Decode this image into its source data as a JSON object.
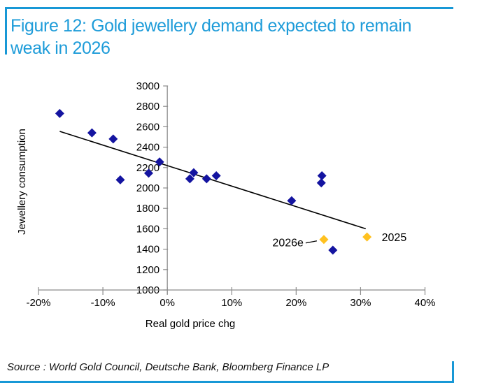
{
  "accent_color": "#1898D6",
  "header": {
    "title_line1": "Figure 12: Gold jewellery demand expected to remain",
    "title_line2": "weak in 2026",
    "title_color": "#1E9CD9"
  },
  "footer": {
    "source_text": "Source : World Gold Council, Deutsche Bank, Bloomberg Finance LP"
  },
  "chart_data": {
    "type": "scatter",
    "title": "",
    "xlabel": "Real gold price chg",
    "ylabel": "Jewellery consumption",
    "xlim": [
      -20,
      40
    ],
    "ylim": [
      1000,
      3000
    ],
    "grid": false,
    "axis_color": "#8C8C8C",
    "text_color": "#000000",
    "y_axis_cross_x": 0,
    "x_ticks": [
      {
        "v": -20,
        "label": "-20%"
      },
      {
        "v": -10,
        "label": "-10%"
      },
      {
        "v": 0,
        "label": "0%"
      },
      {
        "v": 10,
        "label": "10%"
      },
      {
        "v": 20,
        "label": "20%"
      },
      {
        "v": 30,
        "label": "30%"
      },
      {
        "v": 40,
        "label": "40%"
      }
    ],
    "y_ticks": [
      {
        "v": 1000,
        "label": "1000"
      },
      {
        "v": 1200,
        "label": "1200"
      },
      {
        "v": 1400,
        "label": "1400"
      },
      {
        "v": 1600,
        "label": "1600"
      },
      {
        "v": 1800,
        "label": "1800"
      },
      {
        "v": 2000,
        "label": "2000"
      },
      {
        "v": 2200,
        "label": "2200"
      },
      {
        "v": 2400,
        "label": "2400"
      },
      {
        "v": 2600,
        "label": "2600"
      },
      {
        "v": 2800,
        "label": "2800"
      },
      {
        "v": 3000,
        "label": "3000"
      }
    ],
    "series": [
      {
        "name": "jewellery-consumption-history",
        "marker": "diamond",
        "color": "#1414A0",
        "points": [
          {
            "x": -16.7,
            "y": 2730
          },
          {
            "x": -11.7,
            "y": 2540
          },
          {
            "x": -8.4,
            "y": 2480
          },
          {
            "x": -7.3,
            "y": 2080
          },
          {
            "x": -2.9,
            "y": 2145
          },
          {
            "x": -1.2,
            "y": 2255
          },
          {
            "x": 3.5,
            "y": 2090
          },
          {
            "x": 4.1,
            "y": 2150
          },
          {
            "x": 6.1,
            "y": 2090
          },
          {
            "x": 7.6,
            "y": 2120
          },
          {
            "x": 19.3,
            "y": 1875
          },
          {
            "x": 23.9,
            "y": 2050
          },
          {
            "x": 24.0,
            "y": 2120
          },
          {
            "x": 25.7,
            "y": 1390
          }
        ]
      },
      {
        "name": "highlighted-years",
        "marker": "diamond",
        "color": "#FFC120",
        "points": [
          {
            "x": 24.3,
            "y": 1495,
            "label": "2026e",
            "label_side": "left",
            "callout": true
          },
          {
            "x": 31.0,
            "y": 1520,
            "label": "2025",
            "label_side": "right"
          }
        ]
      }
    ],
    "trendline": {
      "x1": -16.7,
      "y1": 2555,
      "x2": 30.8,
      "y2": 1600,
      "color": "#000000"
    }
  }
}
